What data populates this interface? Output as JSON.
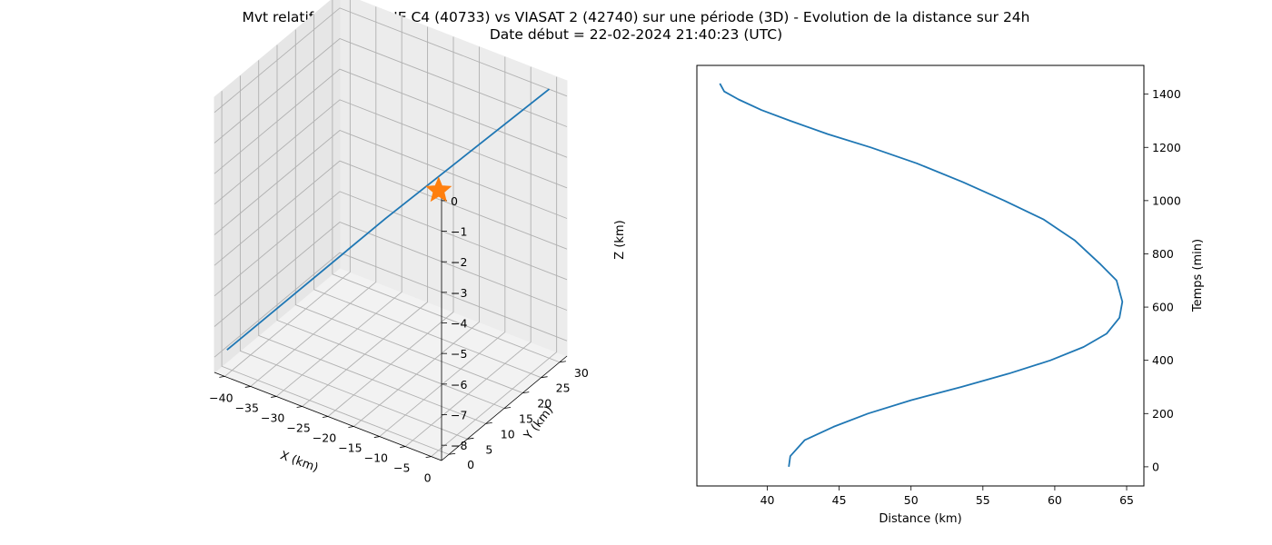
{
  "figure": {
    "title_line1": "Mvt relatif de STARONE C4 (40733) vs VIASAT 2 (42740) sur une période (3D) - Evolution de la distance sur 24h",
    "title_line2": "Date début = 22-02-2024 21:40:23 (UTC)"
  },
  "chart_data": [
    {
      "type": "line3d",
      "xlabel": "X (km)",
      "ylabel": "Y (km)",
      "zlabel": "Z (km)",
      "x_ticks": [
        -40,
        -35,
        -30,
        -25,
        -20,
        -15,
        -10,
        -5,
        0
      ],
      "y_ticks": [
        0,
        5,
        10,
        15,
        20,
        25,
        30
      ],
      "z_ticks": [
        0,
        -1,
        -2,
        -3,
        -4,
        -5,
        -6,
        -7,
        -8
      ],
      "x_tick_labels": [
        "−40",
        "−35",
        "−30",
        "−25",
        "−20",
        "−15",
        "−10",
        "−5",
        "0"
      ],
      "y_tick_labels": [
        "0",
        "5",
        "10",
        "15",
        "20",
        "25",
        "30"
      ],
      "z_tick_labels": [
        "0",
        "−1",
        "−2",
        "−3",
        "−4",
        "−5",
        "−6",
        "−7",
        "−8"
      ],
      "xlim": [
        -42,
        2
      ],
      "ylim": [
        -2,
        32
      ],
      "zlim": [
        -8.5,
        0.5
      ],
      "series": [
        {
          "color": "#1f77b4",
          "points": [
            [
              -41,
              0,
              -7.9
            ],
            [
              -21,
              15,
              -3.8
            ],
            [
              0,
              30,
              0.3
            ]
          ]
        }
      ],
      "marker": {
        "shape": "star",
        "color": "#ff7f0e",
        "point": [
          0,
          0,
          0
        ]
      },
      "grid": true
    },
    {
      "type": "line",
      "xlabel": "Distance (km)",
      "ylabel": "Temps (min)",
      "xlim": [
        35.1,
        66.2
      ],
      "ylim": [
        -72,
        1508
      ],
      "x_ticks": [
        40,
        45,
        50,
        55,
        60,
        65
      ],
      "y_ticks": [
        0,
        200,
        400,
        600,
        800,
        1000,
        1200,
        1400
      ],
      "y_axis_position": "right",
      "series": [
        {
          "color": "#1f77b4",
          "x": [
            41.5,
            41.6,
            42.6,
            44.6,
            47.0,
            50.0,
            53.5,
            56.8,
            59.7,
            62.0,
            63.6,
            64.5,
            64.7,
            64.3,
            63.2,
            61.4,
            59.2,
            56.5,
            53.6,
            50.4,
            47.2,
            44.2,
            41.6,
            39.6,
            38.0,
            37.0,
            36.7
          ],
          "y": [
            0,
            40,
            100,
            150,
            200,
            250,
            300,
            350,
            400,
            450,
            500,
            560,
            620,
            700,
            760,
            850,
            930,
            1000,
            1070,
            1140,
            1200,
            1250,
            1300,
            1340,
            1380,
            1410,
            1440
          ]
        }
      ],
      "grid": false
    }
  ]
}
